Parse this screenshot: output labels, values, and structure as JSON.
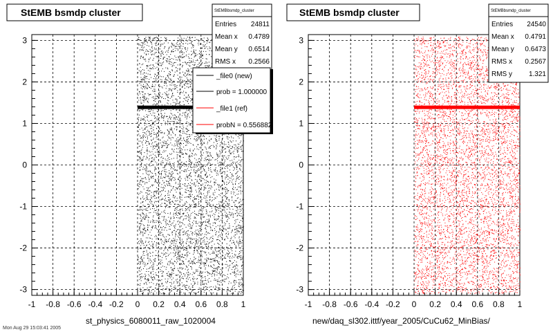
{
  "colors": {
    "new": "#000000",
    "ref": "#ff0000",
    "grid": "#000000"
  },
  "chart_data": [
    {
      "type": "scatter",
      "title": "StEMB bsmdp cluster",
      "xlabel": "st_physics_6080011_raw_1020004",
      "xlim": [
        -1,
        1
      ],
      "ylim": [
        -3.14,
        3.14
      ],
      "xticks": [
        "-1",
        "-0.8",
        "-0.6",
        "-0.4",
        "-0.2",
        "0",
        "0.2",
        "0.4",
        "0.6",
        "0.8",
        "1"
      ],
      "yticks": [
        "-3",
        "-2",
        "-1",
        "0",
        "1",
        "2",
        "3"
      ],
      "grid": true,
      "x_range_filled": [
        0,
        1
      ],
      "series": [
        {
          "name": "_file0 (new)",
          "color": "#000000"
        }
      ],
      "stats": {
        "header": "StEMBbsmdp_cluster",
        "entries_label": "Entries",
        "entries": "24811",
        "meanx_label": "Mean x",
        "meanx": "0.4789",
        "meany_label": "Mean y",
        "meany": "0.6514",
        "rmsx_label": "RMS x",
        "rmsx": "0.2566"
      },
      "legend": {
        "position": "top-right",
        "items": [
          {
            "label": "_file0 (new)",
            "color": "#000000"
          },
          {
            "label": "prob = 1.000000",
            "color": "#000000"
          },
          {
            "label": "_file1 (ref)",
            "color": "#ff0000"
          },
          {
            "label": "probN = 0.556882",
            "color": "#ff0000"
          }
        ]
      },
      "band_y": 1.38
    },
    {
      "type": "scatter",
      "title": "StEMB bsmdp cluster",
      "xlabel": "new/daq_sl302.ittf/year_2005/CuCu62_MinBias/",
      "xlim": [
        -1,
        1
      ],
      "ylim": [
        -3.14,
        3.14
      ],
      "xticks": [
        "-1",
        "-0.8",
        "-0.6",
        "-0.4",
        "-0.2",
        "0",
        "0.2",
        "0.4",
        "0.6",
        "0.8",
        "1"
      ],
      "yticks": [
        "-3",
        "-2",
        "-1",
        "0",
        "1",
        "2",
        "3"
      ],
      "grid": true,
      "x_range_filled": [
        0,
        1
      ],
      "series": [
        {
          "name": "_file1 (ref)",
          "color": "#ff0000"
        }
      ],
      "stats": {
        "header": "StEMBbsmdp_cluster",
        "entries_label": "Entries",
        "entries": "24540",
        "meanx_label": "Mean x",
        "meanx": "0.4791",
        "meany_label": "Mean y",
        "meany": "0.6473",
        "rmsx_label": "RMS x",
        "rmsx": "0.2567",
        "rmsy_label": "RMS y",
        "rmsy": "1.321"
      },
      "band_y": 1.38
    }
  ],
  "footer": "Mon Aug 29 15:03:41 2005"
}
